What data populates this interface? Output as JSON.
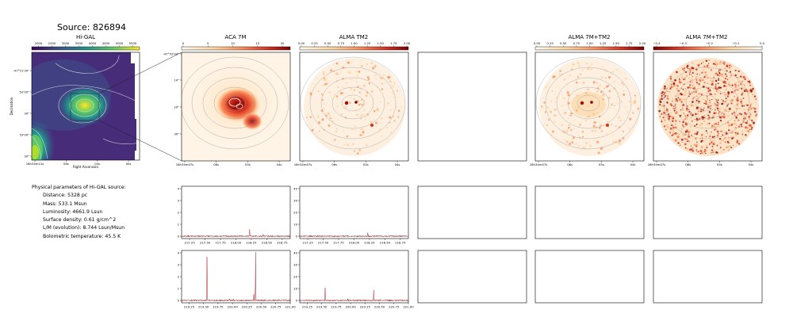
{
  "source_title": "Source: 826894",
  "panels": {
    "higal": "Hi-GAL",
    "aca": "ACA 7M",
    "tm2": "ALMA TM2",
    "combo": "ALMA 7M+TM2",
    "diff": "ALMA 7M+TM2"
  },
  "params": {
    "header": "Physical parameters of Hi-GAL source:",
    "distance": "Distance: 5328 pc",
    "mass": "Mass: 533.1 Msun",
    "luminosity": "Luminosity: 4661.9 Lsun",
    "surface_density": "Surface density: 0.61 g/cm^2",
    "lm": "L/M (evolution): 8.744 Lsun/Msun",
    "tbol": "Bolometric temperature: 45.5 K"
  },
  "colors": {
    "viridis": [
      "#440154",
      "#3b528b",
      "#21918c",
      "#5ec962",
      "#fde725"
    ],
    "orrd": [
      "#fff7ec",
      "#fdd49e",
      "#fc8d59",
      "#d7301f",
      "#7f0000"
    ],
    "spectrum": "#a50f15"
  },
  "chart_data": [
    {
      "id": "higal-map",
      "type": "heatmap",
      "title": "Hi-GAL",
      "colorbar_ticks": [
        "2000",
        "2500",
        "3000",
        "3500",
        "4000",
        "4500",
        "5000",
        "5500"
      ],
      "xlabel": "Right Ascension",
      "ylabel": "Declination",
      "xticks": [
        "18h34m12s",
        "08s",
        "04s",
        "00s"
      ],
      "yticks": [
        "-47°51'30\"",
        "52'00\"",
        "30\"",
        "53'00\"",
        "30\""
      ]
    },
    {
      "id": "aca-map",
      "type": "heatmap",
      "title": "ACA 7M",
      "colorbar_ticks": [
        "0",
        "5",
        "10",
        "15",
        "20"
      ],
      "xticks": [
        "18h34m07s",
        "06s",
        "05s",
        "04s"
      ],
      "yticks": [
        "-47°52'00\"",
        "10\"",
        "20\"",
        "30\""
      ]
    },
    {
      "id": "tm2-map",
      "type": "heatmap",
      "title": "ALMA TM2",
      "colorbar_ticks": [
        "0.00",
        "0.25",
        "0.50",
        "0.75",
        "1.00",
        "1.25",
        "1.50",
        "1.75",
        "2.00"
      ],
      "xticks": [
        "18h34m07s",
        "06s",
        "05s",
        "04s"
      ]
    },
    {
      "id": "combo-map",
      "type": "heatmap",
      "title": "ALMA 7M+TM2",
      "colorbar_ticks": [
        "0.00",
        "0.25",
        "0.50",
        "0.75",
        "1.00",
        "1.25",
        "1.50",
        "1.75",
        "2.00"
      ],
      "xticks": [
        "18h34m07s",
        "06s",
        "05s",
        "04s"
      ]
    },
    {
      "id": "diff-map",
      "type": "heatmap",
      "title": "ALMA 7M+TM2",
      "colorbar_ticks": [
        "−0.4",
        "−0.3",
        "−0.2",
        "−0.1",
        "0.0"
      ],
      "xticks": [
        "18h34m07s",
        "06s",
        "05s",
        "04s"
      ]
    },
    {
      "id": "spec-aca-1",
      "type": "line",
      "xlim": [
        217.12,
        218.88
      ],
      "ylim": [
        -0.2,
        4.2
      ],
      "xticks": [
        "217.25",
        "217.50",
        "217.75",
        "218.00",
        "218.25",
        "218.50",
        "218.75"
      ],
      "yticks": [
        "0",
        "1",
        "2",
        "3",
        "4"
      ],
      "noise": 0.06,
      "peaks": [
        [
          218.222,
          0.55
        ],
        [
          218.44,
          0.15
        ]
      ]
    },
    {
      "id": "spec-tm2-1",
      "type": "line",
      "xlim": [
        217.12,
        218.88
      ],
      "ylim": [
        -2,
        42
      ],
      "xticks": [
        "217.25",
        "217.50",
        "217.75",
        "218.00",
        "218.25",
        "218.50",
        "218.75"
      ],
      "yticks": [
        "0",
        "10",
        "20",
        "30",
        "40"
      ],
      "noise": 0.6,
      "peaks": [
        [
          218.222,
          2.5
        ]
      ]
    },
    {
      "id": "spec-aca-2",
      "type": "line",
      "xlim": [
        219.12,
        221.0
      ],
      "ylim": [
        -0.2,
        4.2
      ],
      "xticks": [
        "219.25",
        "219.50",
        "219.75",
        "220.00",
        "220.25",
        "220.50",
        "220.75",
        "221.00"
      ],
      "yticks": [
        "0",
        "1",
        "2",
        "3",
        "4"
      ],
      "noise": 0.06,
      "peaks": [
        [
          219.56,
          3.65
        ],
        [
          220.4,
          4.05
        ],
        [
          220.37,
          0.5
        ],
        [
          219.95,
          0.12
        ],
        [
          220.02,
          0.1
        ]
      ]
    },
    {
      "id": "spec-tm2-2",
      "type": "line",
      "xlim": [
        219.12,
        221.0
      ],
      "ylim": [
        -2,
        42
      ],
      "xticks": [
        "219.25",
        "219.50",
        "219.75",
        "220.00",
        "220.25",
        "220.50",
        "220.75",
        "221.00"
      ],
      "yticks": [
        "0",
        "10",
        "20",
        "30",
        "40"
      ],
      "noise": 0.6,
      "peaks": [
        [
          219.56,
          10.5
        ],
        [
          220.4,
          8.5
        ],
        [
          219.95,
          1.2
        ]
      ]
    }
  ]
}
